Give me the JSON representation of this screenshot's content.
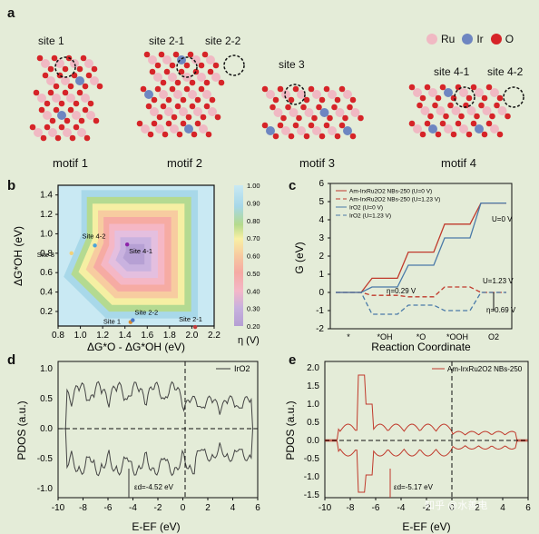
{
  "panel_a": {
    "label": "a",
    "legend": {
      "ru": "Ru",
      "ir": "Ir",
      "o": "O",
      "ru_color": "#f0b9c3",
      "ir_color": "#6e86c1",
      "o_color": "#d62428"
    },
    "sites": [
      "site 1",
      "site 2-1",
      "site 2-2",
      "site 3",
      "site 4-1",
      "site 4-2"
    ],
    "motifs": [
      "motif 1",
      "motif 2",
      "motif 3",
      "motif 4"
    ]
  },
  "panel_b": {
    "label": "b",
    "ylabel": "ΔG*OH (eV)",
    "xlabel": "ΔG*O - ΔG*OH (eV)",
    "colorbar_label": "η (V)",
    "xticks": [
      "0.8",
      "1.0",
      "1.2",
      "1.4",
      "1.6",
      "1.8",
      "2.0",
      "2.2"
    ],
    "yticks": [
      "0.2",
      "0.4",
      "0.6",
      "0.8",
      "1.0",
      "1.2",
      "1.4"
    ],
    "cbar_ticks": [
      "1.00",
      "0.90",
      "0.80",
      "0.70",
      "0.60",
      "0.50",
      "0.40",
      "0.30",
      "0.20"
    ],
    "points": [
      {
        "label": "Site 3",
        "x": 0.92,
        "y": 0.8
      },
      {
        "label": "Site 4-2",
        "x": 1.13,
        "y": 0.88
      },
      {
        "label": "Site 4-1",
        "x": 1.42,
        "y": 0.89
      },
      {
        "label": "Site 1",
        "x": 1.45,
        "y": 0.09
      },
      {
        "label": "Site 2-2",
        "x": 1.47,
        "y": 0.11
      },
      {
        "label": "Site 2-1",
        "x": 2.03,
        "y": 0.04
      }
    ]
  },
  "panel_c": {
    "label": "c",
    "ylabel": "G (eV)",
    "xlabel": "Reaction Coordinate",
    "xticks": [
      "*",
      "*OH",
      "*O",
      "*OOH",
      "O2"
    ],
    "yticks": [
      "-2",
      "-1",
      "0",
      "1",
      "2",
      "3",
      "4",
      "5",
      "6"
    ],
    "legend": [
      "Am-IrxRu2O2 NBs-250 (U=0 V)",
      "Am-IrxRu2O2 NBs-250 (U=1.23 V)",
      "IrO2 (U=0 V)",
      "IrO2 (U=1.23 V)"
    ],
    "annotations": {
      "u0": "U=0 V",
      "u123": "U=1.23 V",
      "eta1": "η=0.29 V",
      "eta2": "η=0.69 V"
    }
  },
  "panel_d": {
    "label": "d",
    "ylabel": "PDOS (a.u.)",
    "xlabel": "E-EF (eV)",
    "legend": "IrO2",
    "annotation": "εd=-4.52 eV",
    "xticks": [
      "-10",
      "-8",
      "-6",
      "-4",
      "-2",
      "0",
      "2",
      "4",
      "6"
    ],
    "yticks": [
      "-1.0",
      "-0.5",
      "0.0",
      "0.5",
      "1.0"
    ]
  },
  "panel_e": {
    "label": "e",
    "ylabel": "PDOS (a.u.)",
    "xlabel": "E-EF (eV)",
    "legend": "Am-IrxRu2O2 NBs-250",
    "annotation": "εd=-5.17 eV",
    "xticks": [
      "-10",
      "-8",
      "-6",
      "-4",
      "-2",
      "0",
      "2",
      "4",
      "6"
    ],
    "yticks": [
      "-1.5",
      "-1.0",
      "-0.5",
      "0.0",
      "0.5",
      "1.0",
      "1.5",
      "2.0"
    ]
  },
  "watermark": "知乎 @水善电"
}
